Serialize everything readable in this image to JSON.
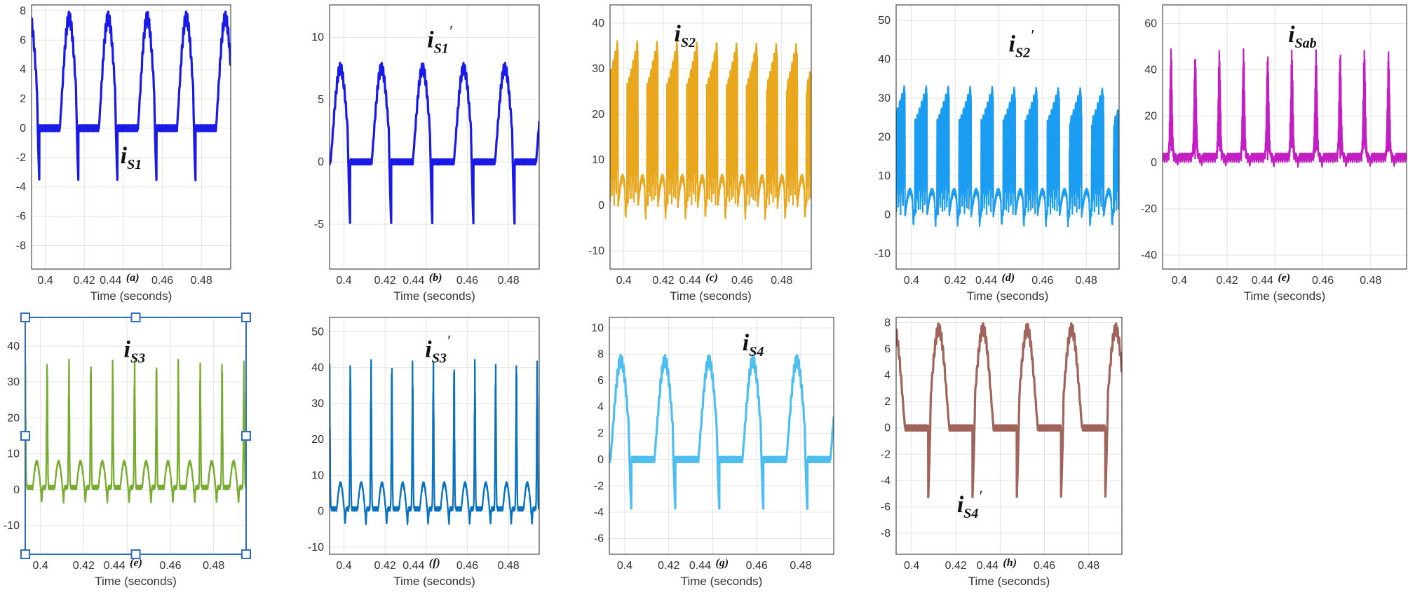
{
  "figure": {
    "x_axis_label": "Time (seconds)",
    "x_ticks": [
      0.4,
      0.42,
      0.44,
      0.46,
      0.48
    ],
    "x_range": [
      0.393,
      0.495
    ]
  },
  "chart_data": [
    {
      "type": "line",
      "panel": "(a)",
      "signal": "i",
      "signal_sub": "S1",
      "prime": "",
      "color": "#1a1ae6",
      "ylim": [
        -9.6,
        8.4
      ],
      "yticks": [
        8,
        6,
        4,
        2,
        0,
        -2,
        -4,
        -6,
        -8
      ],
      "xlabel": "Time (seconds)",
      "shape": "half_sine",
      "peak": 7.5,
      "neg_spike": -3.6,
      "spike_at": "end",
      "half_width": 0.0095,
      "start_phase": -0.0055,
      "period": 0.02,
      "label_x": 0.4385,
      "label_y": -2.4,
      "selected": false
    },
    {
      "type": "line",
      "panel": "(b)",
      "signal": "i",
      "signal_sub": "S1",
      "prime": "′",
      "color": "#1a1ae6",
      "ylim": [
        -8.6,
        12.6
      ],
      "yticks": [
        10,
        5,
        0,
        -5
      ],
      "xlabel": "Time (seconds)",
      "shape": "half_sine",
      "peak": 7.5,
      "neg_spike": -5.0,
      "spike_at": "end",
      "half_width": 0.0095,
      "start_phase": 0.0005,
      "period": 0.02,
      "label_x": 0.4405,
      "label_y": 9.2,
      "selected": false
    },
    {
      "type": "line",
      "panel": "(c)",
      "signal": "i",
      "signal_sub": "S2",
      "prime": "",
      "color": "#e8a71d",
      "ylim": [
        -14,
        44
      ],
      "yticks": [
        40,
        30,
        20,
        10,
        0,
        -10
      ],
      "xlabel": "Time (seconds)",
      "shape": "filled_ramp",
      "peak": 37,
      "period": 0.0101,
      "label_x": 0.4255,
      "label_y": 36,
      "selected": false
    },
    {
      "type": "line",
      "panel": "(d)",
      "signal": "i",
      "signal_sub": "S2",
      "prime": "′",
      "color": "#1a9cf0",
      "ylim": [
        -14,
        54
      ],
      "yticks": [
        50,
        40,
        30,
        20,
        10,
        0,
        -10
      ],
      "xlabel": "Time (seconds)",
      "shape": "filled_ramp",
      "peak": 34,
      "period": 0.0101,
      "label_x": 0.4445,
      "label_y": 42,
      "selected": false
    },
    {
      "type": "line",
      "panel": "(e)",
      "signal": "i",
      "signal_sub": "Sab",
      "prime": "",
      "color": "#c21ec2",
      "ylim": [
        -46,
        68
      ],
      "yticks": [
        60,
        40,
        20,
        0,
        -20,
        -40
      ],
      "xlabel": "Time (seconds)",
      "shape": "spikes",
      "peak": 46,
      "period": 0.0101,
      "label_x": 0.4455,
      "label_y": 52,
      "selected": false
    },
    {
      "type": "line",
      "panel": "(e)",
      "signal": "i",
      "signal_sub": "S3",
      "prime": "",
      "color": "#77ac30",
      "ylim": [
        -18,
        48
      ],
      "yticks": [
        40,
        30,
        20,
        10,
        0,
        -10
      ],
      "xlabel": "Time (seconds)",
      "shape": "spikes_humps",
      "peak": 36,
      "period": 0.0101,
      "label_x": 0.4385,
      "label_y": 37,
      "selected": true
    },
    {
      "type": "line",
      "panel": "(f)",
      "signal": "i",
      "signal_sub": "S3",
      "prime": "′",
      "color": "#0a72bd",
      "ylim": [
        -12,
        54
      ],
      "yticks": [
        50,
        40,
        30,
        20,
        10,
        0,
        -10
      ],
      "xlabel": "Time (seconds)",
      "shape": "spikes_humps",
      "peak": 42,
      "period": 0.0101,
      "label_x": 0.4395,
      "label_y": 43,
      "selected": false
    },
    {
      "type": "line",
      "panel": "(g)",
      "signal": "i",
      "signal_sub": "S4",
      "prime": "",
      "color": "#4dbeee",
      "ylim": [
        -7.2,
        10.8
      ],
      "yticks": [
        10,
        8,
        6,
        4,
        2,
        0,
        -2,
        -4,
        -6
      ],
      "xlabel": "Time (seconds)",
      "shape": "half_sine",
      "peak": 7.5,
      "neg_spike": -3.8,
      "spike_at": "end",
      "half_width": 0.0095,
      "start_phase": 0.0005,
      "period": 0.02,
      "label_x": 0.4535,
      "label_y": 8.3,
      "selected": false
    },
    {
      "type": "line",
      "panel": "(h)",
      "signal": "i",
      "signal_sub": "S4",
      "prime": "′",
      "color": "#a0645a",
      "ylim": [
        -9.6,
        8.4
      ],
      "yticks": [
        8,
        6,
        4,
        2,
        0,
        -2,
        -4,
        -6,
        -8
      ],
      "xlabel": "Time (seconds)",
      "shape": "half_sine",
      "peak": 7.5,
      "neg_spike": -5.3,
      "spike_at": "start",
      "half_width": 0.0095,
      "start_phase": -0.0055,
      "period": 0.02,
      "label_x": 0.4205,
      "label_y": -6.4,
      "selected": false
    }
  ]
}
